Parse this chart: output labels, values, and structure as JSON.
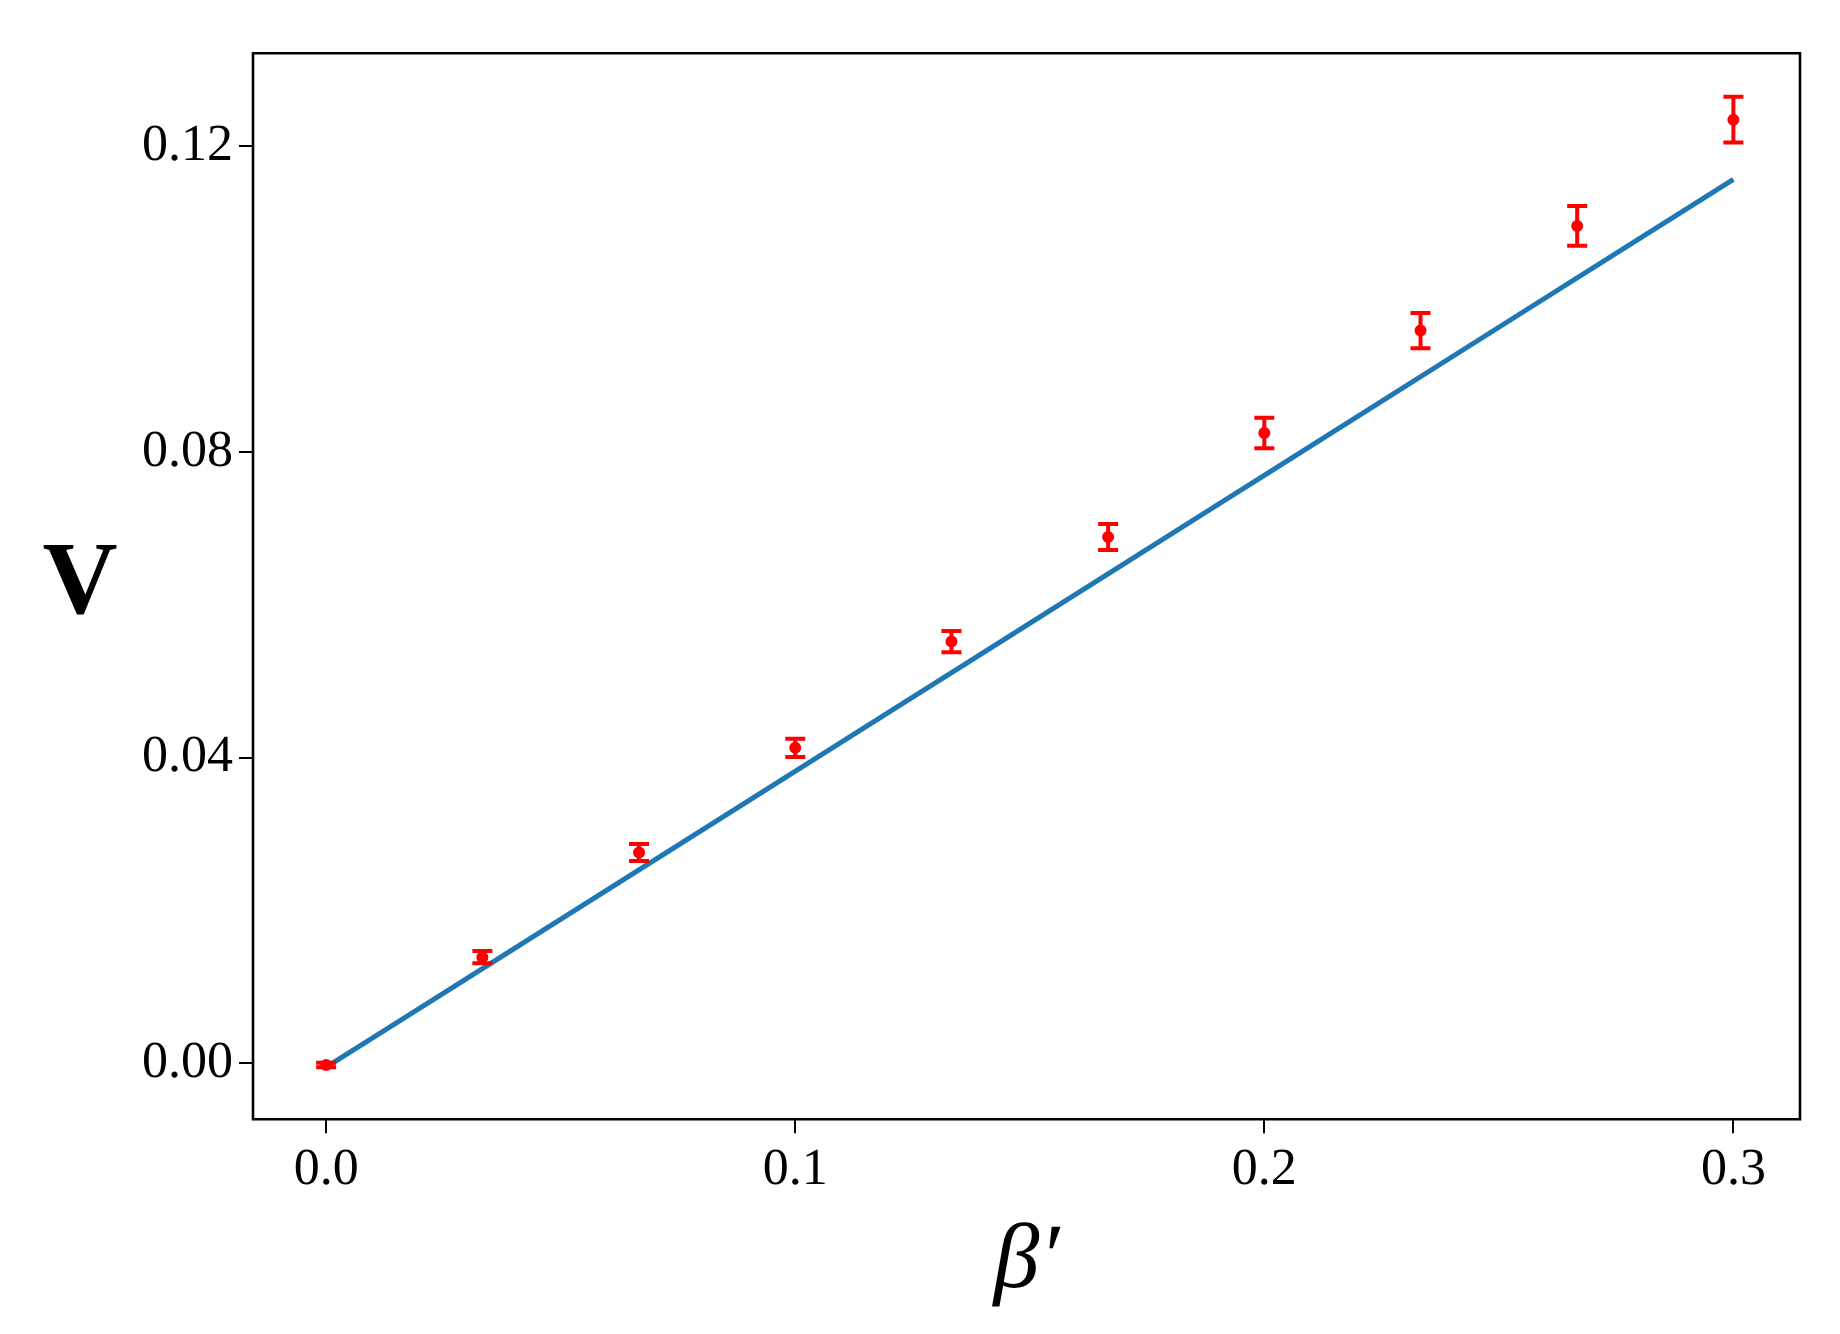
{
  "chart_data": {
    "type": "scatter",
    "xlabel": "β′",
    "ylabel": "V",
    "xlim": [
      -0.0156,
      0.3142
    ],
    "ylim": [
      -0.0073,
      0.1322
    ],
    "xticks": [
      {
        "value": 0,
        "label": "0.0"
      },
      0.1,
      0.2,
      0.3
    ],
    "yticks": [
      {
        "value": 0,
        "label": "0.00"
      },
      0.04,
      0.08,
      0.12
    ],
    "grid": false,
    "legend": false,
    "series": [
      {
        "type": "line",
        "color": "#1f77b4",
        "line_style": "solid",
        "marker": "none",
        "x": [
          0,
          0.3
        ],
        "values": [
          -0.0005,
          0.1157
        ]
      },
      {
        "color": "#ff0000",
        "marker": "circle",
        "x": [
          0,
          0.0333,
          0.0667,
          0.1,
          0.1333,
          0.1667,
          0.2,
          0.2333,
          0.2667,
          0.3
        ],
        "values": [
          -0.0002,
          0.0139,
          0.0276,
          0.0413,
          0.0552,
          0.0689,
          0.0825,
          0.0959,
          0.1096,
          0.1235
        ],
        "errors": [
          0.0003,
          0.0008,
          0.0011,
          0.0012,
          0.0014,
          0.0017,
          0.002,
          0.0023,
          0.0026,
          0.003
        ]
      }
    ]
  }
}
